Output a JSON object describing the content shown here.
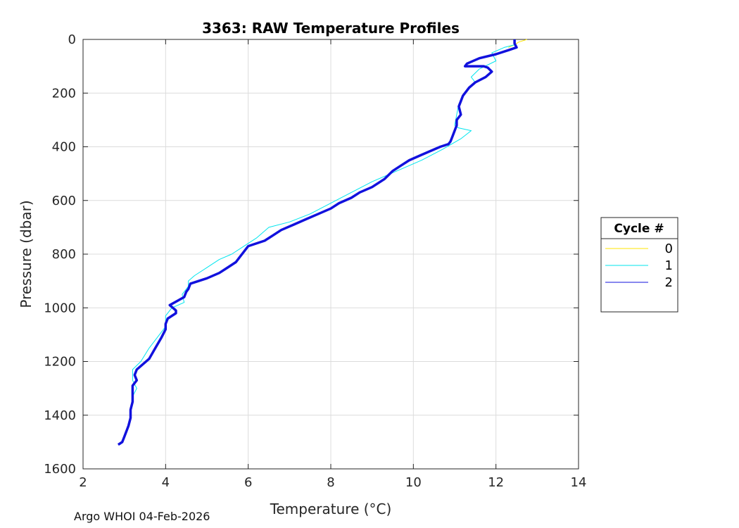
{
  "footer_note": "Argo WHOI 04-Feb-2026",
  "chart_data": {
    "type": "line",
    "title": "3363: RAW Temperature Profiles",
    "xlabel": "Temperature (°C)",
    "ylabel": "Pressure (dbar)",
    "xlim": [
      2,
      14
    ],
    "ylim": [
      0,
      1600
    ],
    "y_reversed": true,
    "xticks": [
      2,
      4,
      6,
      8,
      10,
      12,
      14
    ],
    "yticks": [
      0,
      200,
      400,
      600,
      800,
      1000,
      1200,
      1400,
      1600
    ],
    "grid": true,
    "legend": {
      "title": "Cycle #",
      "placement": "right",
      "entries": [
        "0",
        "1",
        "2"
      ]
    },
    "series": [
      {
        "name": "0",
        "color": "#ffe600",
        "x": [
          12.75,
          12.55,
          12.45,
          12.3
        ],
        "y": [
          0,
          10,
          20,
          30
        ]
      },
      {
        "name": "1",
        "color": "#00e5ee",
        "x": [
          12.45,
          12.2,
          11.9,
          12.0,
          11.6,
          11.4,
          11.5,
          11.25,
          11.1,
          11.05,
          11.0,
          11.1,
          11.4,
          11.15,
          10.7,
          10.2,
          9.6,
          9.0,
          8.5,
          8.0,
          7.5,
          7.0,
          6.5,
          6.2,
          5.9,
          5.6,
          5.3,
          5.0,
          4.7,
          4.55,
          4.55,
          4.4,
          4.45,
          4.15,
          4.0,
          4.0,
          3.8,
          3.6,
          3.4,
          3.2,
          3.2,
          3.3,
          3.2,
          3.15,
          3.15,
          3.05,
          2.9
        ],
        "y": [
          20,
          30,
          50,
          80,
          110,
          140,
          160,
          200,
          240,
          280,
          320,
          330,
          340,
          370,
          410,
          450,
          490,
          530,
          570,
          610,
          650,
          680,
          700,
          740,
          770,
          800,
          820,
          850,
          880,
          900,
          920,
          950,
          980,
          1000,
          1030,
          1070,
          1110,
          1150,
          1200,
          1230,
          1270,
          1300,
          1330,
          1380,
          1420,
          1460,
          1510
        ]
      },
      {
        "name": "2",
        "color": "#1111dd",
        "x": [
          12.45,
          12.45,
          12.5,
          12.3,
          12.0,
          11.6,
          11.3,
          11.25,
          11.7,
          11.8,
          11.9,
          11.75,
          11.5,
          11.35,
          11.2,
          11.1,
          11.15,
          11.05,
          11.05,
          11.0,
          10.95,
          10.9,
          10.85,
          10.65,
          10.2,
          9.9,
          9.7,
          9.5,
          9.3,
          9.0,
          8.7,
          8.5,
          8.2,
          8.0,
          7.7,
          7.4,
          7.1,
          6.8,
          6.6,
          6.4,
          6.0,
          5.9,
          5.8,
          5.7,
          5.5,
          5.3,
          5.0,
          4.6,
          4.55,
          4.5,
          4.45,
          4.1,
          4.25,
          4.25,
          4.05,
          4.0,
          4.0,
          3.9,
          3.75,
          3.6,
          3.45,
          3.3,
          3.25,
          3.3,
          3.2,
          3.2,
          3.2,
          3.15,
          3.15,
          3.1,
          3.05,
          3.0,
          2.95,
          2.85
        ],
        "y": [
          0,
          15,
          30,
          40,
          55,
          70,
          90,
          100,
          100,
          105,
          120,
          140,
          160,
          180,
          210,
          250,
          280,
          300,
          320,
          340,
          360,
          380,
          390,
          400,
          430,
          450,
          470,
          490,
          520,
          550,
          570,
          590,
          610,
          630,
          650,
          670,
          690,
          710,
          730,
          750,
          770,
          790,
          810,
          830,
          850,
          870,
          890,
          910,
          930,
          940,
          960,
          990,
          1010,
          1020,
          1040,
          1060,
          1080,
          1110,
          1150,
          1190,
          1210,
          1230,
          1250,
          1270,
          1290,
          1320,
          1350,
          1380,
          1410,
          1440,
          1460,
          1480,
          1500,
          1510
        ]
      }
    ]
  }
}
